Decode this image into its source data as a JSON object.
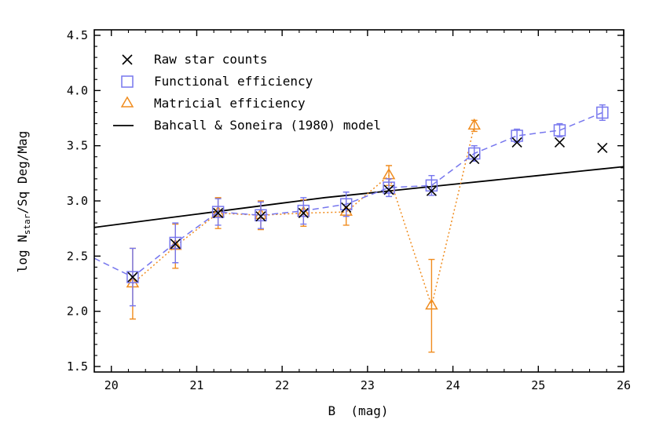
{
  "chart_data": {
    "type": "scatter",
    "title": "",
    "xlabel": "B  (mag)",
    "ylabel": "log N",
    "ylabel_sub": "star",
    "ylabel_tail": "/Sq Deg/Mag",
    "xlim": [
      19.8,
      26.0
    ],
    "ylim": [
      1.45,
      4.55
    ],
    "x_ticks": [
      20,
      21,
      22,
      23,
      24,
      25,
      26
    ],
    "x_tick_labels": [
      "20",
      "21",
      "22",
      "23",
      "24",
      "25",
      "26"
    ],
    "y_ticks": [
      1.5,
      2.0,
      2.5,
      3.0,
      3.5,
      4.0,
      4.5
    ],
    "y_tick_labels": [
      "1.5",
      "2.0",
      "2.5",
      "3.0",
      "3.5",
      "4.0",
      "4.5"
    ],
    "grid": false,
    "legend_position": "top-left",
    "series": [
      {
        "name": "Raw star counts",
        "marker": "x",
        "color": "#000000",
        "points": [
          {
            "x": 20.25,
            "y": 2.31
          },
          {
            "x": 20.75,
            "y": 2.61
          },
          {
            "x": 21.25,
            "y": 2.89
          },
          {
            "x": 21.75,
            "y": 2.86
          },
          {
            "x": 22.25,
            "y": 2.89
          },
          {
            "x": 22.75,
            "y": 2.94
          },
          {
            "x": 23.25,
            "y": 3.1
          },
          {
            "x": 23.75,
            "y": 3.09
          },
          {
            "x": 24.25,
            "y": 3.38
          },
          {
            "x": 24.75,
            "y": 3.53
          },
          {
            "x": 25.25,
            "y": 3.53
          },
          {
            "x": 25.75,
            "y": 3.48
          }
        ]
      },
      {
        "name": "Functional efficiency",
        "marker": "square",
        "line": "dashed",
        "color": "#7777ee",
        "line_start": {
          "x": 19.8,
          "y": 2.48
        },
        "points": [
          {
            "x": 20.25,
            "y": 2.31,
            "err": 0.26
          },
          {
            "x": 20.75,
            "y": 2.62,
            "err": 0.18
          },
          {
            "x": 21.25,
            "y": 2.9,
            "err": 0.12
          },
          {
            "x": 21.75,
            "y": 2.87,
            "err": 0.12
          },
          {
            "x": 22.25,
            "y": 2.91,
            "err": 0.12
          },
          {
            "x": 22.75,
            "y": 2.97,
            "err": 0.11
          },
          {
            "x": 23.25,
            "y": 3.12,
            "err": 0.08
          },
          {
            "x": 23.75,
            "y": 3.14,
            "err": 0.09
          },
          {
            "x": 24.25,
            "y": 3.43,
            "err": 0.07
          },
          {
            "x": 24.75,
            "y": 3.59,
            "err": 0.06
          },
          {
            "x": 25.25,
            "y": 3.64,
            "err": 0.06
          },
          {
            "x": 25.75,
            "y": 3.8,
            "err": 0.07
          }
        ]
      },
      {
        "name": "Matricial efficiency",
        "marker": "triangle",
        "line": "dotted",
        "color": "#f08c1e",
        "points": [
          {
            "x": 20.25,
            "y": 2.25,
            "err": 0.32
          },
          {
            "x": 20.75,
            "y": 2.59,
            "err": 0.2
          },
          {
            "x": 21.25,
            "y": 2.89,
            "err": 0.14
          },
          {
            "x": 21.75,
            "y": 2.87,
            "err": 0.13
          },
          {
            "x": 22.25,
            "y": 2.89,
            "err": 0.12
          },
          {
            "x": 22.75,
            "y": 2.9,
            "err": 0.12
          },
          {
            "x": 23.25,
            "y": 3.23,
            "err": 0.09
          },
          {
            "x": 23.75,
            "y": 2.05,
            "err": 0.42
          },
          {
            "x": 24.25,
            "y": 3.68,
            "err": 0.05
          }
        ]
      },
      {
        "name": "Bahcall & Soneira (1980) model",
        "marker": "none",
        "line": "solid",
        "color": "#000000",
        "points": [
          {
            "x": 19.8,
            "y": 2.76
          },
          {
            "x": 20.5,
            "y": 2.83
          },
          {
            "x": 21.0,
            "y": 2.88
          },
          {
            "x": 21.5,
            "y": 2.93
          },
          {
            "x": 22.0,
            "y": 2.98
          },
          {
            "x": 22.5,
            "y": 3.03
          },
          {
            "x": 23.0,
            "y": 3.07
          },
          {
            "x": 23.5,
            "y": 3.11
          },
          {
            "x": 24.0,
            "y": 3.15
          },
          {
            "x": 24.5,
            "y": 3.19
          },
          {
            "x": 25.0,
            "y": 3.23
          },
          {
            "x": 25.5,
            "y": 3.27
          },
          {
            "x": 26.0,
            "y": 3.31
          }
        ]
      }
    ]
  }
}
